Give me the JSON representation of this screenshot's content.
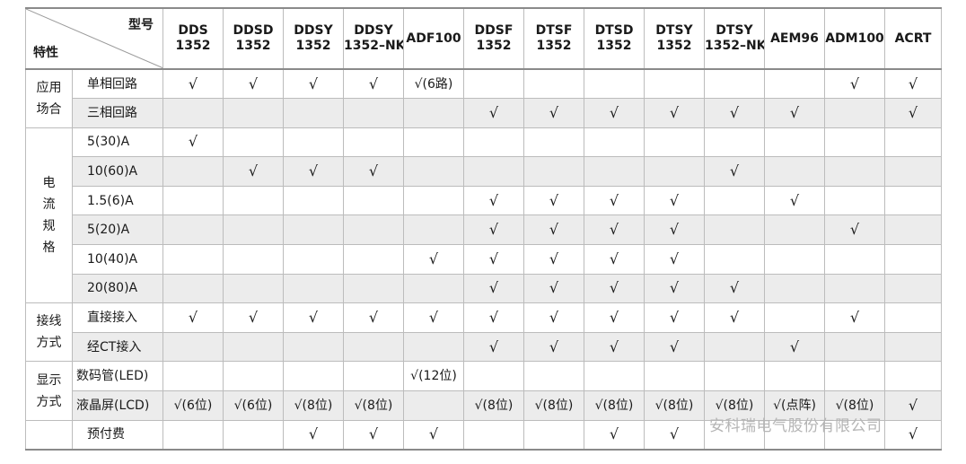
{
  "header": {
    "corner_top": "型号",
    "corner_bottom": "特性",
    "models": [
      [
        "DDS",
        "1352"
      ],
      [
        "DDSD",
        "1352"
      ],
      [
        "DDSY",
        "1352"
      ],
      [
        "DDSY",
        "1352–NK"
      ],
      [
        "ADF100",
        ""
      ],
      [
        "DDSF",
        "1352"
      ],
      [
        "DTSF",
        "1352"
      ],
      [
        "DTSD",
        "1352"
      ],
      [
        "DTSY",
        "1352"
      ],
      [
        "DTSY",
        "1352–NK"
      ],
      [
        "AEM96",
        ""
      ],
      [
        "ADM100",
        ""
      ],
      [
        "ACRT",
        ""
      ]
    ]
  },
  "categories": {
    "application": [
      "应用",
      "场合"
    ],
    "current": [
      "电",
      "流",
      "规",
      "格"
    ],
    "wiring": [
      "接线",
      "方式"
    ],
    "display": [
      "显示",
      "方式"
    ]
  },
  "rows": [
    {
      "label": "单相回路",
      "cells": [
        "√",
        "√",
        "√",
        "√",
        "√(6路)",
        "",
        "",
        "",
        "",
        "",
        "",
        "√",
        "√"
      ]
    },
    {
      "label": "三相回路",
      "cells": [
        "",
        "",
        "",
        "",
        "",
        "√",
        "√",
        "√",
        "√",
        "√",
        "√",
        "",
        "√"
      ]
    },
    {
      "label": "5(30)A",
      "cells": [
        "√",
        "",
        "",
        "",
        "",
        "",
        "",
        "",
        "",
        "",
        "",
        "",
        ""
      ]
    },
    {
      "label": "10(60)A",
      "cells": [
        "",
        "√",
        "√",
        "√",
        "",
        "",
        "",
        "",
        "",
        "√",
        "",
        "",
        ""
      ]
    },
    {
      "label": "1.5(6)A",
      "cells": [
        "",
        "",
        "",
        "",
        "",
        "√",
        "√",
        "√",
        "√",
        "",
        "√",
        "",
        ""
      ]
    },
    {
      "label": "5(20)A",
      "cells": [
        "",
        "",
        "",
        "",
        "",
        "√",
        "√",
        "√",
        "√",
        "",
        "",
        "√",
        ""
      ]
    },
    {
      "label": "10(40)A",
      "cells": [
        "",
        "",
        "",
        "",
        "√",
        "√",
        "√",
        "√",
        "√",
        "",
        "",
        "",
        ""
      ]
    },
    {
      "label": "20(80)A",
      "cells": [
        "",
        "",
        "",
        "",
        "",
        "√",
        "√",
        "√",
        "√",
        "√",
        "",
        "",
        ""
      ]
    },
    {
      "label": "直接接入",
      "cells": [
        "√",
        "√",
        "√",
        "√",
        "√",
        "√",
        "√",
        "√",
        "√",
        "√",
        "",
        "√",
        ""
      ]
    },
    {
      "label": "经CT接入",
      "cells": [
        "",
        "",
        "",
        "",
        "",
        "√",
        "√",
        "√",
        "√",
        "",
        "√",
        "",
        ""
      ]
    },
    {
      "label": "数码管(LED)",
      "cells": [
        "",
        "",
        "",
        "",
        "√(12位)",
        "",
        "",
        "",
        "",
        "",
        "",
        "",
        ""
      ]
    },
    {
      "label": "液晶屏(LCD)",
      "cells": [
        "√(6位)",
        "√(6位)",
        "√(8位)",
        "√(8位)",
        "",
        "√(8位)",
        "√(8位)",
        "√(8位)",
        "√(8位)",
        "√(8位)",
        "√(点阵)",
        "√(8位)",
        "√"
      ]
    },
    {
      "label": "预付费",
      "cells": [
        "",
        "",
        "√",
        "√",
        "√",
        "",
        "",
        "√",
        "√",
        "",
        "",
        "",
        "√"
      ]
    }
  ],
  "watermark": "安科瑞电气股份有限公司"
}
